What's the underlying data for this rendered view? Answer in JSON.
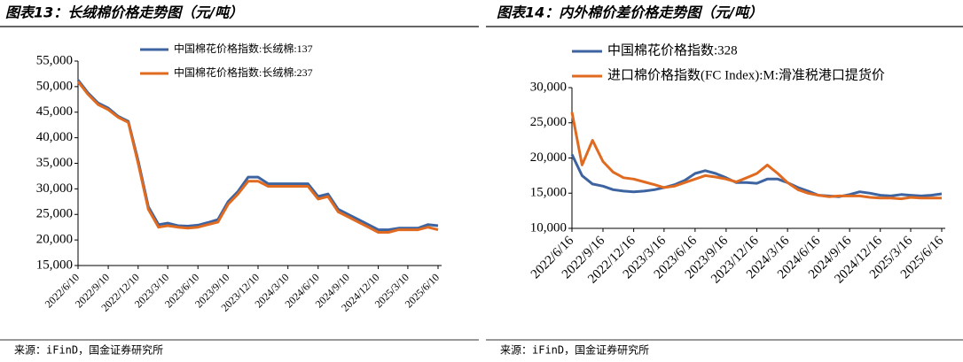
{
  "chart_data": [
    {
      "type": "line",
      "title": "图表13：长绒棉价格走势图（元/吨）",
      "source": "来源：iFinD，国金证券研究所",
      "x": [
        "2022/6/10",
        "2022/7/10",
        "2022/8/10",
        "2022/9/10",
        "2022/10/10",
        "2022/11/10",
        "2022/12/10",
        "2023/1/10",
        "2023/2/10",
        "2023/3/10",
        "2023/4/10",
        "2023/5/10",
        "2023/6/10",
        "2023/7/10",
        "2023/8/10",
        "2023/9/10",
        "2023/10/10",
        "2023/11/10",
        "2023/12/10",
        "2024/1/10",
        "2024/2/10",
        "2024/3/10",
        "2024/4/10",
        "2024/5/10",
        "2024/6/10",
        "2024/7/10",
        "2024/8/10",
        "2024/9/10",
        "2024/10/10",
        "2024/11/10",
        "2024/12/10",
        "2025/1/10",
        "2025/2/10",
        "2025/3/10",
        "2025/4/10",
        "2025/5/10",
        "2025/6/10"
      ],
      "series": [
        {
          "name": "中国棉花价格指数:长绒棉:137",
          "color": "#3d64a0",
          "values": [
            51300,
            48800,
            46800,
            45800,
            44200,
            43200,
            35500,
            26500,
            23000,
            23300,
            22800,
            22700,
            22900,
            23400,
            24000,
            27500,
            29500,
            32300,
            32300,
            31000,
            31000,
            31000,
            31000,
            31000,
            28500,
            29000,
            26000,
            25000,
            24000,
            23000,
            22000,
            22000,
            22300,
            22300,
            22300,
            23000,
            22800
          ]
        },
        {
          "name": "中国棉花价格指数:长绒棉:237",
          "color": "#e06a1f",
          "values": [
            51000,
            48500,
            46500,
            45500,
            44000,
            43000,
            35000,
            26000,
            22500,
            22800,
            22500,
            22300,
            22500,
            23000,
            23500,
            27000,
            29000,
            31500,
            31500,
            30500,
            30500,
            30500,
            30500,
            30500,
            28000,
            28500,
            25500,
            24500,
            23500,
            22500,
            21500,
            21500,
            22000,
            22000,
            22000,
            22500,
            22000
          ]
        }
      ],
      "xlim": [
        "2022/6/10",
        "2025/6/10"
      ],
      "xticks": [
        "2022/6/10",
        "2022/9/10",
        "2022/12/10",
        "2023/3/10",
        "2023/6/10",
        "2023/9/10",
        "2023/12/10",
        "2024/3/10",
        "2024/6/10",
        "2024/9/10",
        "2024/12/10",
        "2025/3/10",
        "2025/6/10"
      ],
      "ylim": [
        15000,
        55000
      ],
      "yticks": [
        {
          "value": 15000,
          "label": "15,000"
        },
        {
          "value": 20000,
          "label": "20,000"
        },
        {
          "value": 25000,
          "label": "25,000"
        },
        {
          "value": 30000,
          "label": "30,000"
        },
        {
          "value": 35000,
          "label": "35,000"
        },
        {
          "value": 40000,
          "label": "40,000"
        },
        {
          "value": 45000,
          "label": "45,000"
        },
        {
          "value": 50000,
          "label": "50,000"
        },
        {
          "value": 55000,
          "label": "55,000"
        }
      ]
    },
    {
      "type": "line",
      "title": "图表14：内外棉价差价格走势图（元/吨）",
      "source": "来源：iFinD，国金证券研究所",
      "x": [
        "2022/6/16",
        "2022/7/16",
        "2022/8/16",
        "2022/9/16",
        "2022/10/16",
        "2022/11/16",
        "2022/12/16",
        "2023/1/16",
        "2023/2/16",
        "2023/3/16",
        "2023/4/16",
        "2023/5/16",
        "2023/6/16",
        "2023/7/16",
        "2023/8/16",
        "2023/9/16",
        "2023/10/16",
        "2023/11/16",
        "2023/12/16",
        "2024/1/16",
        "2024/2/16",
        "2024/3/16",
        "2024/4/16",
        "2024/5/16",
        "2024/6/16",
        "2024/7/16",
        "2024/8/16",
        "2024/9/16",
        "2024/10/16",
        "2024/11/16",
        "2024/12/16",
        "2025/1/16",
        "2025/2/16",
        "2025/3/16",
        "2025/4/16",
        "2025/5/16",
        "2025/6/16"
      ],
      "series": [
        {
          "name": "中国棉花价格指数:328",
          "color": "#3d64a0",
          "values": [
            20500,
            17500,
            16300,
            16000,
            15500,
            15300,
            15200,
            15300,
            15500,
            15800,
            16200,
            16800,
            17800,
            18200,
            17800,
            17200,
            16500,
            16500,
            16400,
            17000,
            17000,
            16500,
            15800,
            15300,
            14700,
            14600,
            14500,
            14800,
            15200,
            15000,
            14700,
            14600,
            14800,
            14700,
            14600,
            14700,
            14900
          ]
        },
        {
          "name": "进口棉价格指数(FC Index):M:滑准税港口提货价",
          "color": "#e06a1f",
          "values": [
            26500,
            19000,
            22500,
            19500,
            18000,
            17200,
            17000,
            16600,
            16200,
            15800,
            16000,
            16500,
            17000,
            17500,
            17300,
            17000,
            16600,
            17200,
            17800,
            19000,
            17800,
            16500,
            15500,
            15000,
            14700,
            14500,
            14600,
            14600,
            14600,
            14400,
            14300,
            14300,
            14200,
            14400,
            14300,
            14300,
            14300
          ]
        }
      ],
      "xlim": [
        "2022/6/16",
        "2025/6/16"
      ],
      "xticks": [
        "2022/6/16",
        "2022/9/16",
        "2022/12/16",
        "2023/3/16",
        "2023/6/16",
        "2023/9/16",
        "2023/12/16",
        "2024/3/16",
        "2024/6/16",
        "2024/9/16",
        "2024/12/16",
        "2025/3/16",
        "2025/6/16"
      ],
      "ylim": [
        10000,
        30000
      ],
      "yticks": [
        {
          "value": 10000,
          "label": "10,000"
        },
        {
          "value": 15000,
          "label": "15,000"
        },
        {
          "value": 20000,
          "label": "20,000"
        },
        {
          "value": 25000,
          "label": "25,000"
        },
        {
          "value": 30000,
          "label": "30,000"
        }
      ]
    }
  ]
}
